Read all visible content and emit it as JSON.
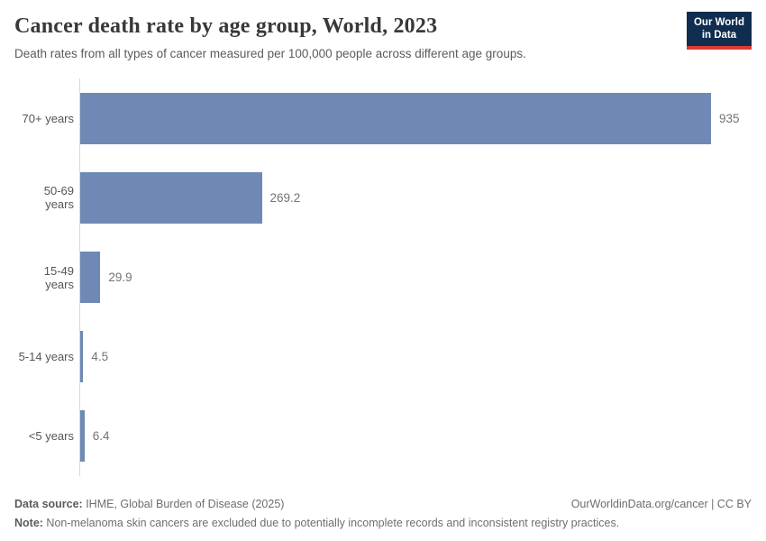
{
  "header": {
    "title": "Cancer death rate by age group, World, 2023",
    "subtitle": "Death rates from all types of cancer measured per 100,000 people across different age groups.",
    "logo": {
      "line1": "Our World",
      "line2": "in Data"
    }
  },
  "chart_data": {
    "type": "bar",
    "orientation": "horizontal",
    "categories": [
      "70+ years",
      "50-69 years",
      "15-49 years",
      "5-14 years",
      "<5 years"
    ],
    "values": [
      935,
      269.2,
      29.9,
      4.5,
      6.4
    ],
    "value_labels": [
      "935",
      "269.2",
      "29.9",
      "4.5",
      "6.4"
    ],
    "title": "Cancer death rate by age group, World, 2023",
    "xlabel": "",
    "ylabel": "",
    "xlim": [
      0,
      935
    ],
    "grid": false,
    "legend": false,
    "bar_color": "#6f89b4",
    "axis_color": "#d9d9d9"
  },
  "theme": {
    "bar_color": "#6f89b4",
    "axis_color": "#d9d9d9",
    "logo_bg": "#102d4f",
    "logo_accent": "#dc3a32"
  },
  "footer": {
    "source_label": "Data source:",
    "source_text": " IHME, Global Burden of Disease (2025)",
    "link_text": "OurWorldinData.org/cancer | CC BY",
    "note_label": "Note:",
    "note_text": " Non-melanoma skin cancers are excluded due to potentially incomplete records and inconsistent registry practices."
  }
}
